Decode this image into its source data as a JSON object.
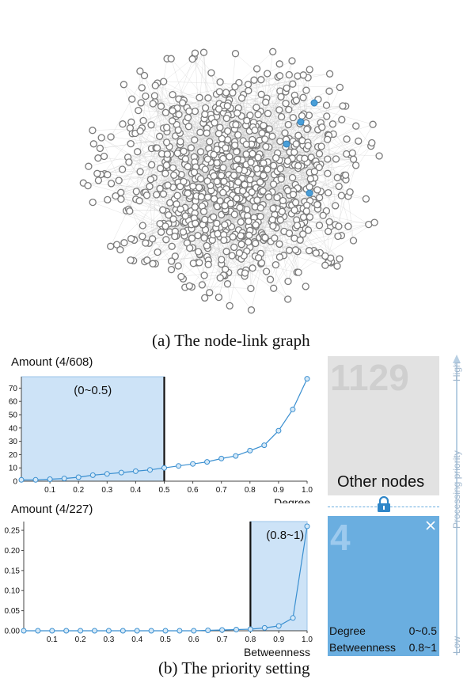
{
  "captions": {
    "graph": "(a) The node-link graph",
    "priority": "(b) The priority setting"
  },
  "graph": {
    "node_count_estimate": 1133,
    "node_color": "#ffffff",
    "node_stroke": "#7a7a7a",
    "edge_color": "#c9c9c9",
    "highlight_color": "#4a9fd8",
    "highlighted_nodes": 4
  },
  "chart_data": [
    {
      "type": "line",
      "title": "Amount (4/608)",
      "xlabel": "Degree",
      "ylabel": "",
      "xlim": [
        0,
        1.0
      ],
      "ylim": [
        0,
        75
      ],
      "x_ticks": [
        "0.1",
        "0.2",
        "0.3",
        "0.4",
        "0.5",
        "0.6",
        "0.7",
        "0.8",
        "0.9",
        "1.0"
      ],
      "y_ticks": [
        "0",
        "10",
        "20",
        "30",
        "40",
        "50",
        "60",
        "70"
      ],
      "selection": {
        "range": [
          0,
          0.5
        ],
        "label": "(0~0.5)"
      },
      "series": [
        {
          "x": [
            0,
            0.05,
            0.1,
            0.15,
            0.2,
            0.25,
            0.3,
            0.35,
            0.4,
            0.45,
            0.5,
            0.55,
            0.6,
            0.65,
            0.7,
            0.75,
            0.8,
            0.85,
            0.9,
            0.95,
            1.0
          ],
          "values": [
            1,
            1,
            1.5,
            2,
            3,
            4.5,
            5.5,
            6.5,
            7.5,
            8.5,
            10,
            11.5,
            13,
            14.5,
            17,
            19,
            23,
            27,
            38,
            54,
            77
          ]
        }
      ]
    },
    {
      "type": "line",
      "title": "Amount (4/227)",
      "xlabel": "Betweenness",
      "ylabel": "",
      "xlim": [
        0,
        1.0
      ],
      "ylim": [
        0,
        0.26
      ],
      "x_ticks": [
        "0.1",
        "0.2",
        "0.3",
        "0.4",
        "0.5",
        "0.6",
        "0.7",
        "0.8",
        "0.9",
        "1.0"
      ],
      "y_ticks": [
        "0.00",
        "0.05",
        "0.10",
        "0.15",
        "0.20",
        "0.25"
      ],
      "selection": {
        "range": [
          0.8,
          1.0
        ],
        "label": "(0.8~1)"
      },
      "series": [
        {
          "x": [
            0,
            0.05,
            0.1,
            0.15,
            0.2,
            0.25,
            0.3,
            0.35,
            0.4,
            0.45,
            0.5,
            0.55,
            0.6,
            0.65,
            0.7,
            0.75,
            0.8,
            0.85,
            0.9,
            0.95,
            1.0
          ],
          "values": [
            0,
            0,
            0,
            0,
            0,
            0,
            0,
            0,
            0,
            0,
            0,
            0,
            0,
            0.001,
            0.002,
            0.003,
            0.004,
            0.007,
            0.012,
            0.032,
            0.26
          ]
        }
      ]
    }
  ],
  "priority_panel": {
    "top": {
      "count": "1129",
      "label": "Other nodes",
      "bg": "#e2e2e2",
      "count_color": "#cfcfcf"
    },
    "bottom": {
      "count": "4",
      "bg": "#6aaee0",
      "count_color": "#9dcaee",
      "rows": [
        {
          "name": "Degree",
          "value": "0~0.5"
        },
        {
          "name": "Betweenness",
          "value": "0.8~1"
        }
      ]
    },
    "axis": {
      "high": "High",
      "mid": "Processing priority",
      "low": "Low",
      "color": "#b8cfe3"
    }
  }
}
